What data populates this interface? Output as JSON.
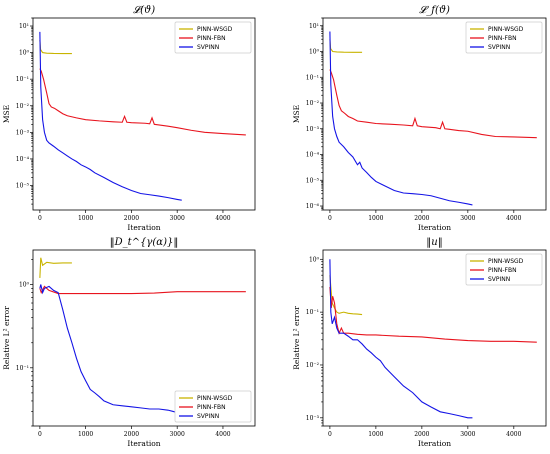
{
  "chart_data": [
    {
      "type": "line",
      "title": "𝓛(ϑ)",
      "xlabel": "Iteration",
      "ylabel": "MSE",
      "yscale": "log",
      "xlim": [
        -150,
        4700
      ],
      "ylim": [
        1.2e-06,
        20
      ],
      "xticks": [
        0,
        1000,
        2000,
        3000,
        4000
      ],
      "xtick_labels": [
        "0",
        "1000",
        "2000",
        "3000",
        "4000"
      ],
      "yticks": [
        1e-05,
        0.0001,
        0.001,
        0.01,
        0.1,
        1.0,
        10.0
      ],
      "ytick_labels": [
        "10⁻⁵",
        "10⁻⁴",
        "10⁻³",
        "10⁻²",
        "10⁻¹",
        "10⁰",
        "10¹"
      ],
      "legend_position": "top-right",
      "series": [
        {
          "name": "PINN-WSGD",
          "color": "#c8b400",
          "x": [
            0,
            15,
            60,
            150,
            300,
            500,
            700
          ],
          "y": [
            3,
            1.3,
            1.0,
            0.95,
            0.93,
            0.92,
            0.92
          ]
        },
        {
          "name": "PINN-FBN",
          "color": "#e8141e",
          "x": [
            0,
            30,
            80,
            150,
            200,
            250,
            320,
            400,
            500,
            600,
            800,
            1000,
            1300,
            1600,
            1800,
            1850,
            1900,
            2000,
            2300,
            2400,
            2450,
            2500,
            2600,
            2700,
            2800,
            3000,
            3300,
            3600,
            4000,
            4500
          ],
          "y": [
            0.25,
            0.2,
            0.1,
            0.03,
            0.012,
            0.009,
            0.008,
            0.0065,
            0.005,
            0.0042,
            0.0035,
            0.003,
            0.0027,
            0.0025,
            0.0024,
            0.004,
            0.0024,
            0.0023,
            0.0022,
            0.0021,
            0.0035,
            0.002,
            0.0019,
            0.0018,
            0.0017,
            0.0015,
            0.0012,
            0.001,
            0.0009,
            0.0008
          ]
        },
        {
          "name": "SVPINN",
          "color": "#1414e6",
          "x": [
            0,
            20,
            60,
            100,
            150,
            200,
            300,
            400,
            500,
            600,
            700,
            800,
            900,
            1000,
            1100,
            1200,
            1400,
            1600,
            1800,
            2000,
            2200,
            2400,
            2600,
            2800,
            3000,
            3100
          ],
          "y": [
            6,
            0.05,
            0.003,
            0.001,
            0.0005,
            0.0004,
            0.0003,
            0.00022,
            0.00017,
            0.00013,
            0.0001,
            8e-05,
            6e-05,
            5e-05,
            4e-05,
            3e-05,
            2e-05,
            1.3e-05,
            9e-06,
            6.5e-06,
            5e-06,
            4.5e-06,
            4e-06,
            3.5e-06,
            3e-06,
            2.8e-06
          ]
        }
      ]
    },
    {
      "type": "line",
      "title": "𝓛_f(ϑ)",
      "xlabel": "Iteration",
      "ylabel": "MSE",
      "yscale": "log",
      "xlim": [
        -150,
        4700
      ],
      "ylim": [
        7e-07,
        20
      ],
      "xticks": [
        0,
        1000,
        2000,
        3000,
        4000
      ],
      "xtick_labels": [
        "0",
        "1000",
        "2000",
        "3000",
        "4000"
      ],
      "yticks": [
        1e-06,
        1e-05,
        0.0001,
        0.001,
        0.01,
        0.1,
        1.0,
        10.0
      ],
      "ytick_labels": [
        "10⁻⁶",
        "10⁻⁵",
        "10⁻⁴",
        "10⁻³",
        "10⁻²",
        "10⁻¹",
        "10⁰",
        "10¹"
      ],
      "legend_position": "top-right",
      "series": [
        {
          "name": "PINN-WSGD",
          "color": "#c8b400",
          "x": [
            0,
            15,
            60,
            150,
            300,
            500,
            700
          ],
          "y": [
            3,
            1.3,
            1.0,
            0.96,
            0.94,
            0.93,
            0.93
          ]
        },
        {
          "name": "PINN-FBN",
          "color": "#e8141e",
          "x": [
            0,
            30,
            80,
            150,
            200,
            250,
            320,
            400,
            500,
            600,
            800,
            1000,
            1300,
            1600,
            1800,
            1850,
            1900,
            2000,
            2300,
            2400,
            2450,
            2500,
            2600,
            2700,
            2800,
            3000,
            3300,
            3600,
            4000,
            4500
          ],
          "y": [
            0.2,
            0.15,
            0.08,
            0.02,
            0.008,
            0.005,
            0.004,
            0.003,
            0.0025,
            0.002,
            0.0018,
            0.0016,
            0.0015,
            0.0014,
            0.0013,
            0.0025,
            0.0013,
            0.0012,
            0.0011,
            0.001,
            0.0018,
            0.001,
            0.00095,
            0.0009,
            0.00085,
            0.0008,
            0.0006,
            0.0005,
            0.00048,
            0.00045
          ]
        },
        {
          "name": "SVPINN",
          "color": "#1414e6",
          "x": [
            0,
            20,
            60,
            100,
            150,
            200,
            300,
            400,
            500,
            600,
            650,
            700,
            800,
            900,
            1000,
            1200,
            1400,
            1600,
            1800,
            2000,
            2200,
            2400,
            2600,
            2800,
            3000,
            3100
          ],
          "y": [
            6,
            0.05,
            0.003,
            0.001,
            0.0005,
            0.0003,
            0.0002,
            0.00012,
            8e-05,
            4e-05,
            5e-05,
            3e-05,
            2e-05,
            1.3e-05,
            9e-06,
            6e-06,
            4e-06,
            3.2e-06,
            3e-06,
            2.8e-06,
            2.5e-06,
            2e-06,
            1.6e-06,
            1.4e-06,
            1.2e-06,
            1.1e-06
          ]
        }
      ]
    },
    {
      "type": "line",
      "title": "‖D_t^{γ(α)}‖",
      "xlabel": "Iteration",
      "ylabel": "Relative L² error",
      "yscale": "log",
      "xlim": [
        -150,
        4700
      ],
      "ylim": [
        0.02,
        2.6
      ],
      "xticks": [
        0,
        1000,
        2000,
        3000,
        4000
      ],
      "xtick_labels": [
        "0",
        "1000",
        "2000",
        "3000",
        "4000"
      ],
      "yticks": [
        0.1,
        1
      ],
      "ytick_labels": [
        "10⁻¹",
        "10⁰"
      ],
      "legend_position": "bottom-right",
      "series": [
        {
          "name": "PINN-WSGD",
          "color": "#c8b400",
          "x": [
            0,
            20,
            60,
            150,
            300,
            500,
            700
          ],
          "y": [
            1.2,
            2.1,
            1.7,
            1.85,
            1.8,
            1.82,
            1.82
          ]
        },
        {
          "name": "PINN-FBN",
          "color": "#e8141e",
          "x": [
            0,
            30,
            100,
            200,
            400,
            700,
            1000,
            1500,
            2000,
            2500,
            3000,
            3500,
            4000,
            4500
          ],
          "y": [
            0.9,
            0.8,
            0.95,
            0.85,
            0.78,
            0.78,
            0.78,
            0.78,
            0.78,
            0.79,
            0.82,
            0.82,
            0.82,
            0.82
          ]
        },
        {
          "name": "SVPINN",
          "color": "#1414e6",
          "x": [
            0,
            20,
            60,
            100,
            200,
            300,
            400,
            500,
            600,
            700,
            800,
            900,
            1000,
            1100,
            1200,
            1300,
            1400,
            1600,
            1800,
            2000,
            2200,
            2400,
            2600,
            2800,
            2900,
            3000,
            3100
          ],
          "y": [
            0.9,
            1.0,
            0.8,
            0.9,
            0.95,
            0.85,
            0.8,
            0.5,
            0.3,
            0.2,
            0.13,
            0.09,
            0.07,
            0.055,
            0.05,
            0.045,
            0.04,
            0.036,
            0.035,
            0.034,
            0.033,
            0.032,
            0.032,
            0.031,
            0.03,
            0.029,
            0.03
          ]
        }
      ]
    },
    {
      "type": "line",
      "title": "‖u‖",
      "xlabel": "Iteration",
      "ylabel": "Relative L² error",
      "yscale": "log",
      "xlim": [
        -150,
        4700
      ],
      "ylim": [
        0.0007,
        1.5
      ],
      "xticks": [
        0,
        1000,
        2000,
        3000,
        4000
      ],
      "xtick_labels": [
        "0",
        "1000",
        "2000",
        "3000",
        "4000"
      ],
      "yticks": [
        0.001,
        0.01,
        0.1,
        1.0
      ],
      "ytick_labels": [
        "10⁻³",
        "10⁻²",
        "10⁻¹",
        "10⁰"
      ],
      "legend_position": "top-right",
      "series": [
        {
          "name": "PINN-WSGD",
          "color": "#c8b400",
          "x": [
            0,
            20,
            50,
            100,
            150,
            200,
            300,
            400,
            500,
            600,
            700
          ],
          "y": [
            0.5,
            0.3,
            0.15,
            0.12,
            0.1,
            0.095,
            0.1,
            0.095,
            0.093,
            0.092,
            0.09
          ]
        },
        {
          "name": "PINN-FBN",
          "color": "#e8141e",
          "x": [
            0,
            30,
            60,
            100,
            150,
            200,
            250,
            300,
            400,
            600,
            800,
            1000,
            1500,
            2000,
            2500,
            3000,
            3500,
            4000,
            4500
          ],
          "y": [
            0.3,
            0.12,
            0.2,
            0.15,
            0.06,
            0.04,
            0.05,
            0.04,
            0.04,
            0.038,
            0.037,
            0.037,
            0.035,
            0.034,
            0.031,
            0.029,
            0.028,
            0.028,
            0.027
          ]
        },
        {
          "name": "SVPINN",
          "color": "#1414e6",
          "x": [
            0,
            20,
            50,
            100,
            150,
            200,
            300,
            400,
            500,
            600,
            700,
            800,
            900,
            1000,
            1100,
            1200,
            1400,
            1600,
            1800,
            2000,
            2200,
            2400,
            2600,
            2800,
            3000,
            3100
          ],
          "y": [
            1.0,
            0.1,
            0.06,
            0.08,
            0.05,
            0.04,
            0.04,
            0.035,
            0.03,
            0.03,
            0.025,
            0.02,
            0.017,
            0.014,
            0.012,
            0.009,
            0.006,
            0.004,
            0.003,
            0.002,
            0.0016,
            0.0013,
            0.0012,
            0.0011,
            0.001,
            0.001
          ]
        }
      ]
    }
  ]
}
